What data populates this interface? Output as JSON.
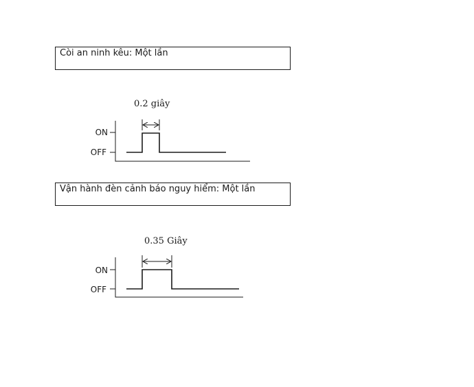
{
  "diagrams": [
    {
      "title": "Còi an ninh kêu: Một lần",
      "duration_label": "0.2 giây",
      "duration_seconds": 0.2,
      "levels": {
        "on": "ON",
        "off": "OFF"
      }
    },
    {
      "title": "Vận hành đèn cảnh báo nguy hiểm: Một lần",
      "duration_label": "0.35 Giây",
      "duration_seconds": 0.35,
      "levels": {
        "on": "ON",
        "off": "OFF"
      }
    }
  ]
}
